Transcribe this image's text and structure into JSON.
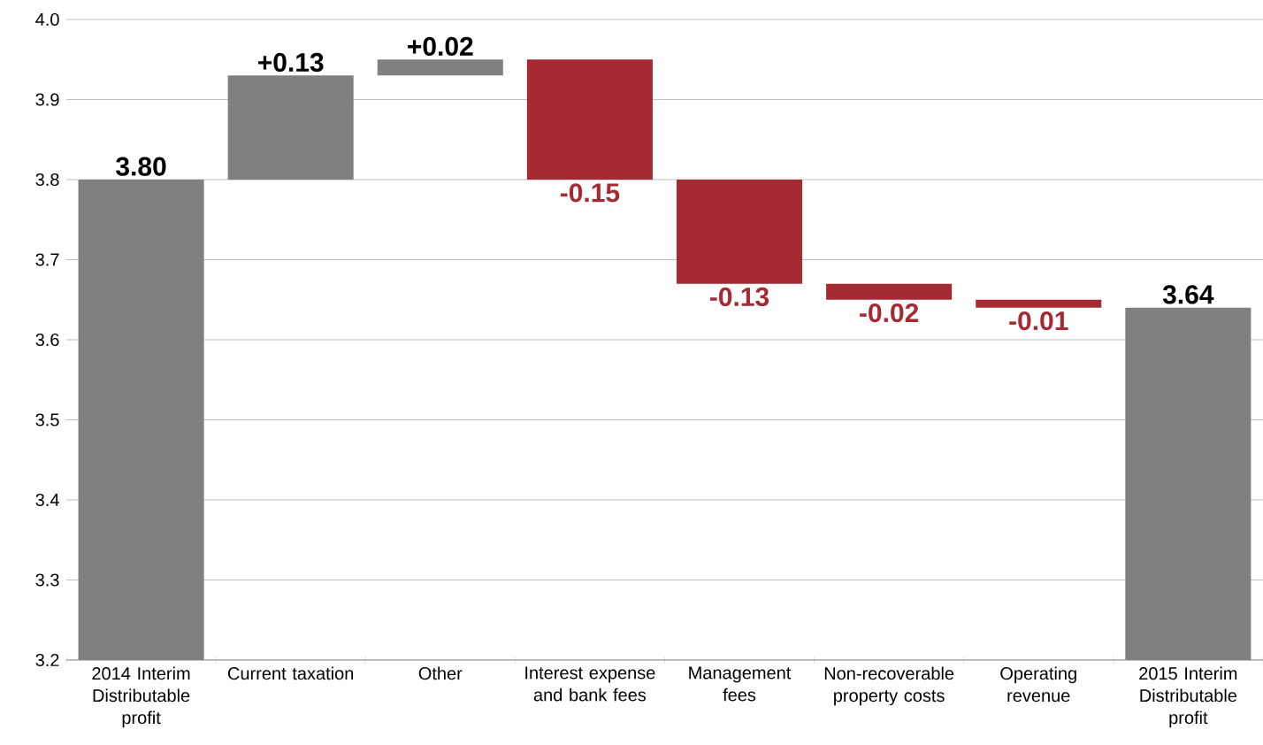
{
  "chart_data": {
    "type": "bar",
    "categories": [
      "2014 Interim Distributable profit",
      "Current taxation",
      "Other",
      "Interest expense and bank fees",
      "Management fees",
      "Non-recoverable property costs",
      "Operating revenue",
      "2015 Interim Distributable profit"
    ],
    "values": [
      3.8,
      0.13,
      0.02,
      -0.15,
      -0.13,
      -0.02,
      -0.01,
      3.64
    ],
    "base": [
      null,
      3.8,
      3.93,
      3.95,
      3.8,
      3.67,
      3.65,
      null
    ],
    "colors": [
      "#808080",
      "#808080",
      "#808080",
      "#a52a33",
      "#a52a33",
      "#a52a33",
      "#a52a33",
      "#808080"
    ],
    "value_labels": [
      "3.80",
      "+0.13",
      "+0.02",
      "-0.15",
      "-0.13",
      "-0.02",
      "-0.01",
      "3.64"
    ],
    "ylim": [
      3.2,
      4.0
    ],
    "yticks": [
      3.2,
      3.3,
      3.4,
      3.5,
      3.6,
      3.7,
      3.8,
      3.9,
      {
        "value": 4.0,
        "label": "4.0"
      }
    ],
    "grid": "y"
  }
}
